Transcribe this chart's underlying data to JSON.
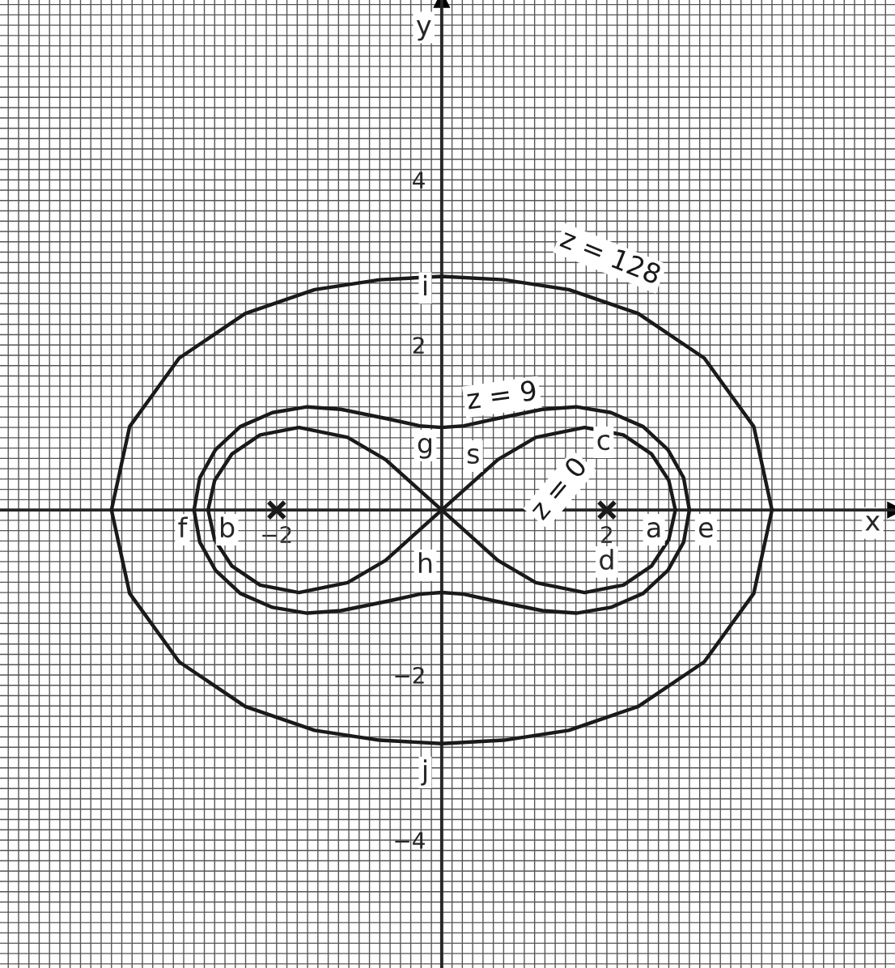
{
  "chart_data": {
    "type": "line",
    "xlabel": "x",
    "ylabel": "y",
    "xlim": [
      -5.35,
      5.49
    ],
    "ylim": [
      -5.55,
      6.18
    ],
    "xticks": [
      -2,
      2
    ],
    "yticks": [
      -4,
      -2,
      2,
      4
    ],
    "grid": true,
    "legend": false,
    "series": [
      {
        "name": "z = 128",
        "color": "#1a1a1a",
        "x": [
          4,
          3.78,
          3.18,
          2.38,
          1.54,
          0.75,
          0,
          -0.75,
          -1.54,
          -2.38,
          -3.18,
          -3.78,
          -4,
          -3.78,
          -3.18,
          -2.38,
          -1.54,
          -0.75,
          0,
          0.75,
          1.54,
          2.38,
          3.18,
          3.78,
          4,
          3.78
        ],
        "values": [
          0,
          1.01,
          1.84,
          2.38,
          2.67,
          2.79,
          2.83,
          2.79,
          2.67,
          2.38,
          1.84,
          1.01,
          0,
          -1.01,
          -1.84,
          -2.38,
          -2.67,
          -2.79,
          -2.83,
          -2.79,
          -2.67,
          -2.38,
          -1.84,
          -1.01,
          0,
          1.01
        ]
      },
      {
        "name": "z = 9",
        "color": "#1a1a1a",
        "x": [
          3,
          2.93,
          2.74,
          2.44,
          2.05,
          1.63,
          1.22,
          0.63,
          0.27,
          0,
          -0.27,
          -0.63,
          -1.22,
          -1.63,
          -2.05,
          -2.44,
          -2.74,
          -2.93,
          -3,
          -2.93,
          -2.74,
          -2.44,
          -2.05,
          -1.63,
          -1.22,
          -0.63,
          -0.27,
          0,
          0.27,
          0.63,
          1.22,
          1.63,
          2.05,
          2.44,
          2.74,
          2.93,
          3,
          2.93
        ],
        "values": [
          0,
          0.39,
          0.73,
          1.01,
          1.18,
          1.25,
          1.22,
          1.1,
          1.02,
          1,
          1.02,
          1.1,
          1.22,
          1.25,
          1.18,
          1.01,
          0.73,
          0.39,
          0,
          -0.39,
          -0.73,
          -1.01,
          -1.18,
          -1.25,
          -1.22,
          -1.1,
          -1.02,
          -1,
          -1.02,
          -1.1,
          -1.22,
          -1.25,
          -1.18,
          -1.01,
          -0.73,
          -0.39,
          0,
          0.39
        ]
      },
      {
        "name": "z = 0",
        "color": "#1a1a1a",
        "x": [
          0,
          0.68,
          1.14,
          1.73,
          2.2,
          2.54,
          2.75,
          2.83,
          2.75,
          2.54,
          2.2,
          1.73,
          1.14,
          0.68,
          0,
          -0.68,
          -1.14,
          -1.73,
          -2.2,
          -2.54,
          -2.75,
          -2.83,
          -2.75,
          -2.54,
          -2.2,
          -1.73,
          -1.14,
          -0.68,
          0,
          0.68
        ],
        "values": [
          0,
          0.61,
          0.88,
          1,
          0.91,
          0.68,
          0.36,
          0,
          -0.36,
          -0.68,
          -0.91,
          -1,
          -0.88,
          -0.61,
          0,
          0.61,
          0.88,
          1,
          0.91,
          0.68,
          0.36,
          0,
          -0.36,
          -0.68,
          -0.91,
          -1,
          -0.88,
          -0.61,
          0,
          0.61
        ]
      },
      {
        "type": "scatter",
        "color": "#1a1a1a",
        "marker": "cross",
        "x": [
          -2,
          2
        ],
        "values": [
          0,
          0
        ]
      }
    ],
    "annotations": [
      {
        "text": "a",
        "x": 2.57,
        "y": -0.24
      },
      {
        "text": "b",
        "x": -2.6,
        "y": -0.24
      },
      {
        "text": "c",
        "x": 1.96,
        "y": 0.82
      },
      {
        "text": "d",
        "x": 2.0,
        "y": -0.63
      },
      {
        "text": "e",
        "x": 3.2,
        "y": -0.24
      },
      {
        "text": "f",
        "x": -3.14,
        "y": -0.24
      },
      {
        "text": "g",
        "x": -0.2,
        "y": 0.78
      },
      {
        "text": "h",
        "x": -0.2,
        "y": -0.67
      },
      {
        "text": "i",
        "x": -0.2,
        "y": 2.69
      },
      {
        "text": "j",
        "x": -0.2,
        "y": -3.18
      },
      {
        "text": "s",
        "x": 0,
        "y": 0
      }
    ]
  }
}
